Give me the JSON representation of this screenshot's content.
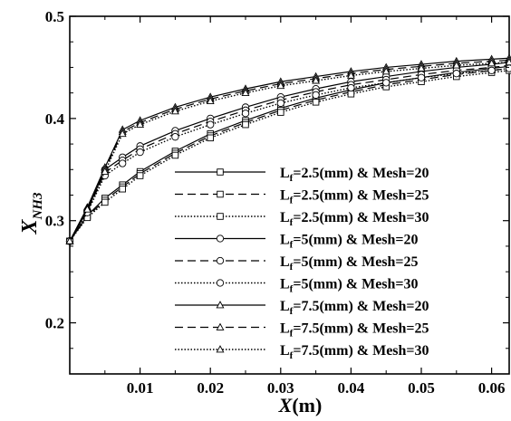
{
  "chart_data": {
    "type": "line",
    "xlabel": {
      "main": "X",
      "unit": "(m)"
    },
    "ylabel": {
      "main": "X",
      "sub": "NH3"
    },
    "xlim": [
      0,
      0.0625
    ],
    "ylim": [
      0.15,
      0.5
    ],
    "x_ticks": [
      0.01,
      0.02,
      0.03,
      0.04,
      0.05,
      0.06
    ],
    "x_tick_labels": [
      "0.01",
      "0.02",
      "0.03",
      "0.04",
      "0.05",
      "0.06"
    ],
    "y_ticks": [
      0.2,
      0.3,
      0.4,
      0.5
    ],
    "y_tick_labels": [
      "0.2",
      "0.3",
      "0.4",
      "0.5"
    ],
    "grid": false,
    "legend_position": "center-right",
    "series": [
      {
        "name_main": "L",
        "name_sub": "f",
        "name_rest": "=2.5(mm) & Mesh=20",
        "line_style": "solid",
        "marker": "square",
        "x": [
          0,
          0.0025,
          0.005,
          0.0075,
          0.01,
          0.015,
          0.02,
          0.025,
          0.03,
          0.035,
          0.04,
          0.045,
          0.05,
          0.055,
          0.06,
          0.0625
        ],
        "y": [
          0.28,
          0.305,
          0.322,
          0.335,
          0.348,
          0.368,
          0.385,
          0.398,
          0.41,
          0.42,
          0.428,
          0.435,
          0.44,
          0.445,
          0.449,
          0.451
        ]
      },
      {
        "name_main": "L",
        "name_sub": "f",
        "name_rest": "=2.5(mm) & Mesh=25",
        "line_style": "dashed",
        "marker": "square",
        "x": [
          0,
          0.0025,
          0.005,
          0.0075,
          0.01,
          0.015,
          0.02,
          0.025,
          0.03,
          0.035,
          0.04,
          0.045,
          0.05,
          0.055,
          0.06,
          0.0625
        ],
        "y": [
          0.28,
          0.304,
          0.32,
          0.333,
          0.346,
          0.366,
          0.383,
          0.396,
          0.408,
          0.418,
          0.426,
          0.433,
          0.438,
          0.443,
          0.447,
          0.449
        ]
      },
      {
        "name_main": "L",
        "name_sub": "f",
        "name_rest": "=2.5(mm) & Mesh=30",
        "line_style": "dotted",
        "marker": "square",
        "x": [
          0,
          0.0025,
          0.005,
          0.0075,
          0.01,
          0.015,
          0.02,
          0.025,
          0.03,
          0.035,
          0.04,
          0.045,
          0.05,
          0.055,
          0.06,
          0.0625
        ],
        "y": [
          0.28,
          0.303,
          0.318,
          0.331,
          0.344,
          0.364,
          0.381,
          0.394,
          0.406,
          0.416,
          0.424,
          0.431,
          0.436,
          0.441,
          0.445,
          0.447
        ]
      },
      {
        "name_main": "L",
        "name_sub": "f",
        "name_rest": "=5(mm) & Mesh=20",
        "line_style": "solid",
        "marker": "circle",
        "x": [
          0,
          0.0025,
          0.005,
          0.0075,
          0.01,
          0.015,
          0.02,
          0.025,
          0.03,
          0.035,
          0.04,
          0.045,
          0.05,
          0.055,
          0.06,
          0.0625
        ],
        "y": [
          0.28,
          0.31,
          0.35,
          0.362,
          0.373,
          0.388,
          0.4,
          0.411,
          0.421,
          0.429,
          0.436,
          0.441,
          0.446,
          0.45,
          0.453,
          0.455
        ]
      },
      {
        "name_main": "L",
        "name_sub": "f",
        "name_rest": "=5(mm) & Mesh=25",
        "line_style": "dashed",
        "marker": "circle",
        "x": [
          0,
          0.0025,
          0.005,
          0.0075,
          0.01,
          0.015,
          0.02,
          0.025,
          0.03,
          0.035,
          0.04,
          0.045,
          0.05,
          0.055,
          0.06,
          0.0625
        ],
        "y": [
          0.28,
          0.309,
          0.347,
          0.359,
          0.37,
          0.385,
          0.397,
          0.408,
          0.418,
          0.426,
          0.433,
          0.438,
          0.443,
          0.447,
          0.45,
          0.452
        ]
      },
      {
        "name_main": "L",
        "name_sub": "f",
        "name_rest": "=5(mm) & Mesh=30",
        "line_style": "dotted",
        "marker": "circle",
        "x": [
          0,
          0.0025,
          0.005,
          0.0075,
          0.01,
          0.015,
          0.02,
          0.025,
          0.03,
          0.035,
          0.04,
          0.045,
          0.05,
          0.055,
          0.06,
          0.0625
        ],
        "y": [
          0.28,
          0.308,
          0.344,
          0.356,
          0.367,
          0.382,
          0.394,
          0.405,
          0.415,
          0.423,
          0.43,
          0.435,
          0.44,
          0.444,
          0.447,
          0.449
        ]
      },
      {
        "name_main": "L",
        "name_sub": "f",
        "name_rest": "=7.5(mm) & Mesh=20",
        "line_style": "solid",
        "marker": "triangle",
        "x": [
          0,
          0.0025,
          0.005,
          0.0075,
          0.01,
          0.015,
          0.02,
          0.025,
          0.03,
          0.035,
          0.04,
          0.045,
          0.05,
          0.055,
          0.06,
          0.0625
        ],
        "y": [
          0.28,
          0.313,
          0.352,
          0.389,
          0.398,
          0.411,
          0.421,
          0.429,
          0.436,
          0.441,
          0.446,
          0.45,
          0.453,
          0.456,
          0.458,
          0.459
        ]
      },
      {
        "name_main": "L",
        "name_sub": "f",
        "name_rest": "=7.5(mm) & Mesh=25",
        "line_style": "dashed",
        "marker": "triangle",
        "x": [
          0,
          0.0025,
          0.005,
          0.0075,
          0.01,
          0.015,
          0.02,
          0.025,
          0.03,
          0.035,
          0.04,
          0.045,
          0.05,
          0.055,
          0.06,
          0.0625
        ],
        "y": [
          0.28,
          0.312,
          0.35,
          0.387,
          0.396,
          0.409,
          0.419,
          0.427,
          0.434,
          0.439,
          0.444,
          0.448,
          0.451,
          0.454,
          0.456,
          0.457
        ]
      },
      {
        "name_main": "L",
        "name_sub": "f",
        "name_rest": "=7.5(mm) & Mesh=30",
        "line_style": "dotted",
        "marker": "triangle",
        "x": [
          0,
          0.0025,
          0.005,
          0.0075,
          0.01,
          0.015,
          0.02,
          0.025,
          0.03,
          0.035,
          0.04,
          0.045,
          0.05,
          0.055,
          0.06,
          0.0625
        ],
        "y": [
          0.28,
          0.311,
          0.348,
          0.385,
          0.394,
          0.407,
          0.417,
          0.425,
          0.432,
          0.437,
          0.442,
          0.446,
          0.449,
          0.452,
          0.454,
          0.455
        ]
      }
    ]
  }
}
